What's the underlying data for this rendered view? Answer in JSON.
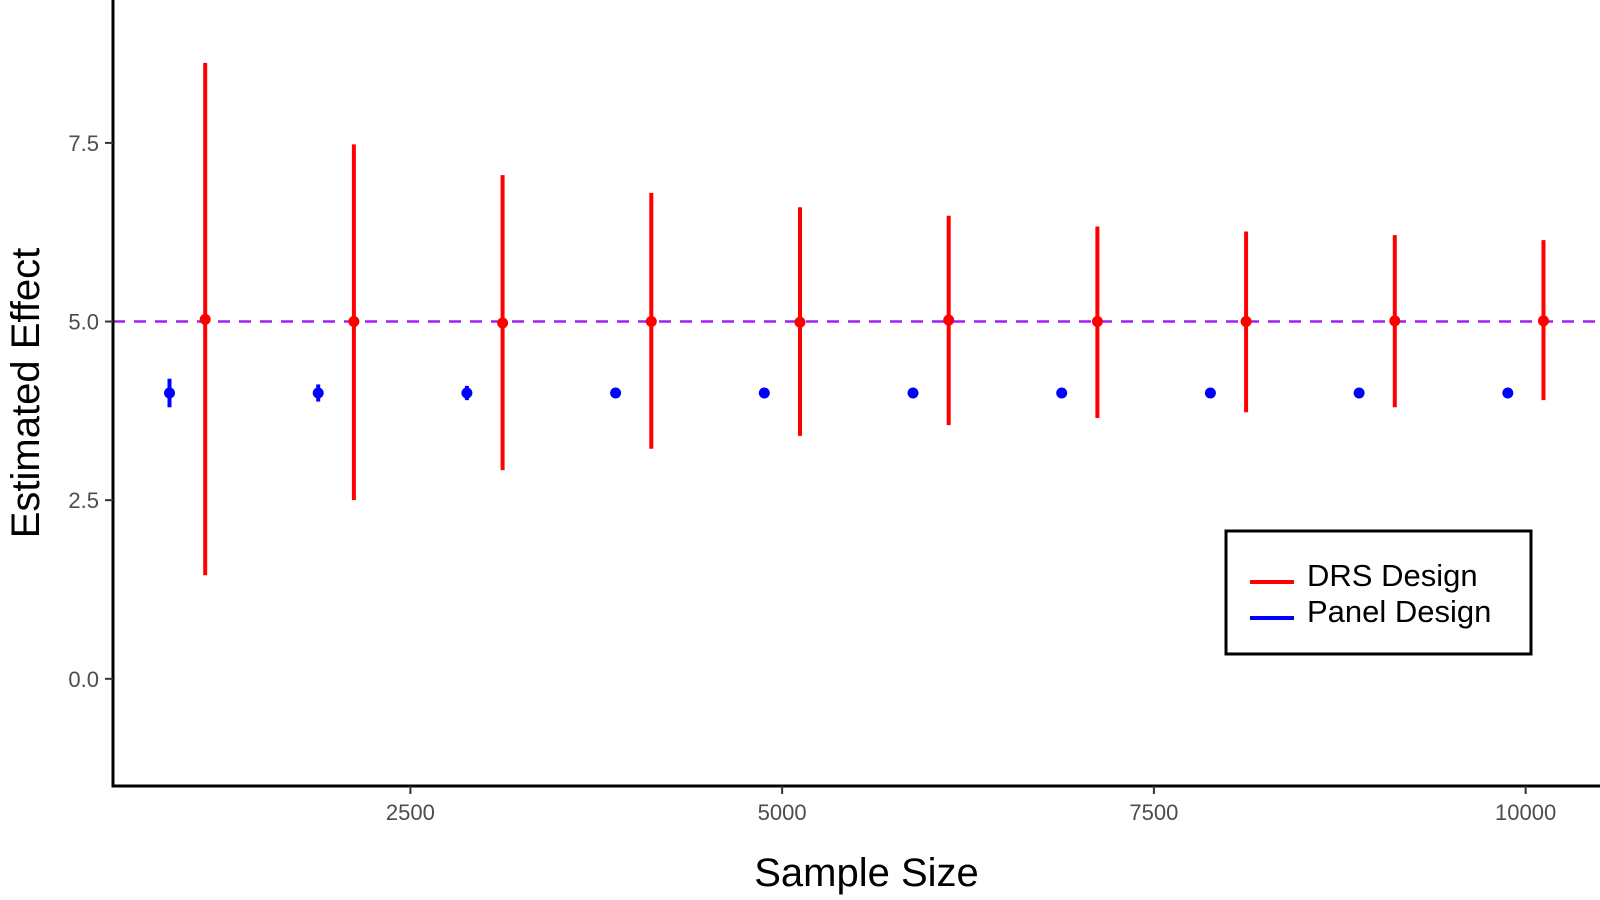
{
  "chart_data": {
    "type": "scatter",
    "title": "",
    "xlabel": "Sample Size",
    "ylabel": "Estimated Effect",
    "xlim": [
      500,
      10500
    ],
    "ylim": [
      -1.5,
      9.5
    ],
    "x_ticks": [
      2500,
      5000,
      7500,
      10000
    ],
    "x_tick_labels": [
      "2500",
      "5000",
      "7500",
      "10000"
    ],
    "y_ticks": [
      0,
      2.5,
      5,
      7.5
    ],
    "y_tick_labels": [
      "0.0",
      "2.5",
      "5.0",
      "7.5"
    ],
    "grid": false,
    "legend_position": "bottom-right",
    "reference_line": {
      "y": 5.0,
      "style": "dashed",
      "color": "#a020f0"
    },
    "series": [
      {
        "name": "DRS Design",
        "color": "#ff0000",
        "points": [
          {
            "x": 1120,
            "y": 5.03,
            "low": 1.45,
            "high": 8.62
          },
          {
            "x": 2120,
            "y": 5.0,
            "low": 2.5,
            "high": 7.48
          },
          {
            "x": 3120,
            "y": 4.98,
            "low": 2.92,
            "high": 7.05
          },
          {
            "x": 4120,
            "y": 5.0,
            "low": 3.22,
            "high": 6.8
          },
          {
            "x": 5120,
            "y": 4.99,
            "low": 3.4,
            "high": 6.6
          },
          {
            "x": 6120,
            "y": 5.02,
            "low": 3.55,
            "high": 6.48
          },
          {
            "x": 7120,
            "y": 5.0,
            "low": 3.65,
            "high": 6.33
          },
          {
            "x": 8120,
            "y": 5.0,
            "low": 3.73,
            "high": 6.26
          },
          {
            "x": 9120,
            "y": 5.01,
            "low": 3.8,
            "high": 6.21
          },
          {
            "x": 10120,
            "y": 5.01,
            "low": 3.9,
            "high": 6.14
          }
        ]
      },
      {
        "name": "Panel Design",
        "color": "#0000ff",
        "points": [
          {
            "x": 880,
            "y": 4.0,
            "low": 3.8,
            "high": 4.2
          },
          {
            "x": 1880,
            "y": 4.0,
            "low": 3.88,
            "high": 4.12
          },
          {
            "x": 2880,
            "y": 4.0,
            "low": 3.9,
            "high": 4.1
          },
          {
            "x": 3880,
            "y": 4.0,
            "low": 3.93,
            "high": 4.07
          },
          {
            "x": 4880,
            "y": 4.0,
            "low": 3.94,
            "high": 4.06
          },
          {
            "x": 5880,
            "y": 4.0,
            "low": 3.95,
            "high": 4.05
          },
          {
            "x": 6880,
            "y": 4.0,
            "low": 3.96,
            "high": 4.04
          },
          {
            "x": 7880,
            "y": 4.0,
            "low": 3.96,
            "high": 4.04
          },
          {
            "x": 8880,
            "y": 4.0,
            "low": 3.97,
            "high": 4.03
          },
          {
            "x": 9880,
            "y": 4.0,
            "low": 3.97,
            "high": 4.03
          }
        ]
      }
    ]
  }
}
